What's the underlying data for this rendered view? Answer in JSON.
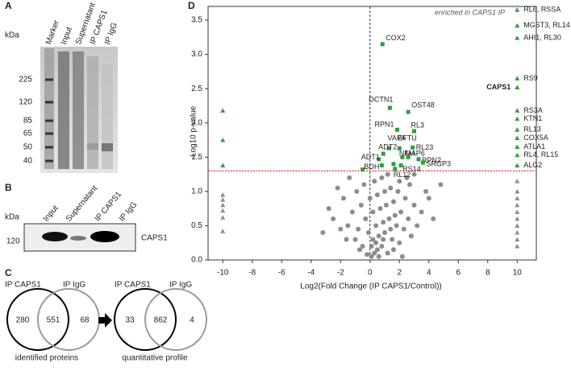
{
  "panels": {
    "A": {
      "letter": "A",
      "unit": "kDa",
      "lanes": [
        "Marker",
        "Input",
        "Supernatant",
        "IP CAPS1",
        "IP IgG"
      ],
      "markers": [
        225,
        120,
        85,
        65,
        50,
        40
      ]
    },
    "B": {
      "letter": "B",
      "unit": "kDa",
      "lanes": [
        "Input",
        "Supernatant",
        "IP CAPS1",
        "IP IgG"
      ],
      "marker": 120,
      "band_label": "CAPS1"
    },
    "C": {
      "letter": "C",
      "left": {
        "set_a": "IP CAPS1",
        "set_b": "IP IgG",
        "only_a": 280,
        "both": 551,
        "only_b": 68,
        "caption": "identified proteins"
      },
      "right": {
        "set_a": "IP CAPS1",
        "set_b": "IP IgG",
        "only_a": 33,
        "both": 862,
        "only_b": 4,
        "caption": "quantitative profile"
      }
    }
  },
  "chart_data": {
    "type": "scatter",
    "letter": "D",
    "xlabel": "Log2(Fold Change (IP CAPS1/Control))",
    "ylabel": "-Log10 p-value",
    "annotation": "enriched in CAPS1 IP",
    "xlim": [
      -11,
      11.3
    ],
    "ylim": [
      0,
      3.7
    ],
    "xticks": [
      -10,
      -8,
      -6,
      -4,
      -2,
      0,
      2,
      4,
      6,
      8,
      10
    ],
    "yticks": [
      {
        "value": 0,
        "label": "0.0"
      },
      0.5,
      {
        "value": 1,
        "label": "1.0"
      },
      1.5,
      {
        "value": 2,
        "label": "2.0"
      },
      2.5,
      {
        "value": 3,
        "label": "3.0"
      },
      3.5
    ],
    "reference_lines": {
      "y": 1.3,
      "x": 0
    },
    "threshold_color": "#e02020",
    "series": [
      {
        "marker": "square",
        "color": "#2e9e3a",
        "x": [
          0.85,
          1.35,
          2.6,
          1.85,
          3.0,
          1.3,
          2.0,
          2.9,
          0.9,
          2.2,
          2.6,
          3.3,
          0.6,
          0.8,
          3.6,
          2.1,
          1.7,
          -0.5,
          1.6
        ],
        "values": [
          3.15,
          2.22,
          2.16,
          1.9,
          1.88,
          1.63,
          1.63,
          1.64,
          1.55,
          1.5,
          1.5,
          1.47,
          1.47,
          1.38,
          1.42,
          1.38,
          1.33,
          1.32,
          1.4
        ],
        "labels": [
          "COX2",
          "DCTN1",
          "OST48",
          "RPN1",
          "RL3",
          "VAPA",
          "EFTU",
          "RL23",
          "ADT2",
          "NFM",
          "MAP6",
          "RPN2",
          "ADT1",
          "BDH",
          "SRGP3",
          "RS14",
          "RL12",
          null,
          null
        ]
      },
      {
        "marker": "triangle",
        "color": "#2e9e3a",
        "highlight": "CAPS1",
        "highlight_color": "#e02020",
        "x": [
          10,
          10,
          10,
          10,
          10,
          10,
          10,
          10,
          10,
          10,
          10,
          10,
          -10,
          -10,
          -10
        ],
        "values": [
          3.65,
          3.42,
          3.24,
          2.65,
          2.52,
          2.18,
          2.06,
          1.9,
          1.78,
          1.65,
          1.53,
          1.38,
          2.18,
          1.75,
          1.38
        ],
        "labels": [
          "RL6, RSSA",
          "MGST3, RL14",
          "AHI1, RL30",
          "RS9",
          "CAPS1",
          "RS3A",
          "KTN1",
          "RL13",
          "COX5A",
          "ATLA1",
          "RL4, RL15",
          "ALG2",
          null,
          null,
          null
        ]
      },
      {
        "marker": "triangle",
        "color": "#8c8c8c",
        "x": [
          10,
          10,
          10,
          10,
          10,
          10,
          10,
          10,
          10,
          10,
          -10,
          -10,
          -10,
          -10,
          -10,
          -10
        ],
        "values": [
          1.15,
          1.0,
          0.9,
          0.8,
          0.7,
          0.6,
          0.5,
          0.4,
          0.3,
          0.2,
          0.95,
          0.88,
          0.8,
          0.72,
          0.62,
          0.42
        ]
      },
      {
        "marker": "circle",
        "color": "#8c8c8c",
        "x": [
          0.1,
          0.3,
          -0.2,
          0.5,
          0.8,
          1.2,
          -0.5,
          0.2,
          0.6,
          1.0,
          1.5,
          2.0,
          -1.0,
          -0.8,
          0.4,
          0.9,
          1.3,
          1.8,
          2.3,
          2.8,
          -1.5,
          -2.0,
          -0.3,
          0.2,
          0.7,
          1.1,
          1.6,
          2.1,
          2.6,
          3.2,
          -1.2,
          -0.6,
          0.0,
          0.5,
          1.0,
          1.4,
          1.9,
          2.4,
          3.0,
          3.5,
          -1.8,
          -2.5,
          -3.2,
          -0.9,
          -0.4,
          0.3,
          0.8,
          1.2,
          2.0,
          2.7,
          4.0,
          4.8,
          -1.4,
          -2.2,
          0.1,
          0.6,
          1.6,
          -0.1,
          1.7,
          2.5,
          3.8,
          -2.8,
          0.9,
          1.4,
          -0.7,
          4.3,
          3.0,
          -1.6,
          2.2,
          0.4
        ],
        "values": [
          0.05,
          0.1,
          0.08,
          0.15,
          0.2,
          0.1,
          0.2,
          0.3,
          0.35,
          0.4,
          0.3,
          0.25,
          0.3,
          0.45,
          0.5,
          0.55,
          0.6,
          0.5,
          0.45,
          0.35,
          0.5,
          0.45,
          0.6,
          0.7,
          0.75,
          0.8,
          0.85,
          0.7,
          0.6,
          0.5,
          0.7,
          0.8,
          0.9,
          0.95,
          1.0,
          1.05,
          1.0,
          0.9,
          0.8,
          0.7,
          0.9,
          0.6,
          0.4,
          1.0,
          1.1,
          1.15,
          1.2,
          1.25,
          1.15,
          1.1,
          0.9,
          1.1,
          1.2,
          1.05,
          0.2,
          0.05,
          0.15,
          0.4,
          0.65,
          1.2,
          1.0,
          0.75,
          0.3,
          0.45,
          0.15,
          0.6,
          1.25,
          0.3,
          0.05,
          0.25
        ]
      }
    ]
  }
}
